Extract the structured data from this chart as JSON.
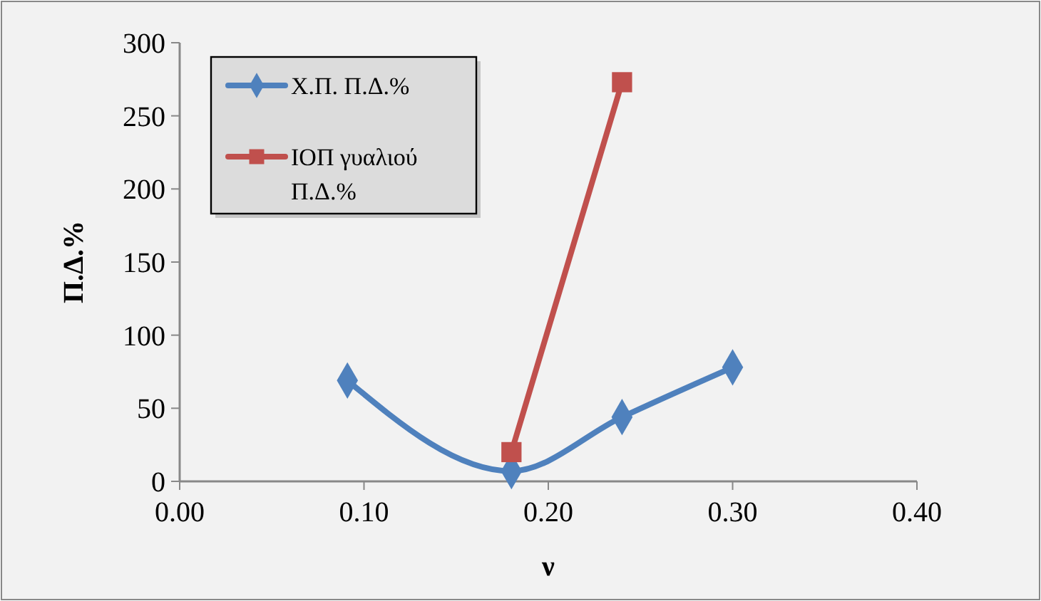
{
  "chart_data": {
    "type": "line",
    "xlabel": "ν",
    "ylabel": "Π.Δ.%",
    "xlim": [
      0,
      0.4
    ],
    "xticks": [
      {
        "value": 0,
        "label": "0.00"
      },
      {
        "value": 0.1,
        "label": "0.10"
      },
      {
        "value": 0.2,
        "label": "0.20"
      },
      {
        "value": 0.3,
        "label": "0.30"
      },
      {
        "value": 0.4,
        "label": "0.40"
      }
    ],
    "ylim": [
      0,
      300
    ],
    "yticks": [
      0,
      50,
      100,
      150,
      200,
      250,
      300
    ],
    "grid": false,
    "legend": "top left",
    "series": [
      {
        "name": "Χ.Π. Π.Δ.%",
        "color": "#4f81bd",
        "marker": "diamond",
        "x": [
          0.091,
          0.18,
          0.24,
          0.3
        ],
        "values": [
          69,
          7,
          44,
          78
        ]
      },
      {
        "name": "ΙΟΠ γυαλιού Π.Δ.%",
        "color": "#c0504d",
        "marker": "square",
        "x": [
          0.18,
          0.24
        ],
        "values": [
          20,
          273
        ]
      }
    ]
  }
}
